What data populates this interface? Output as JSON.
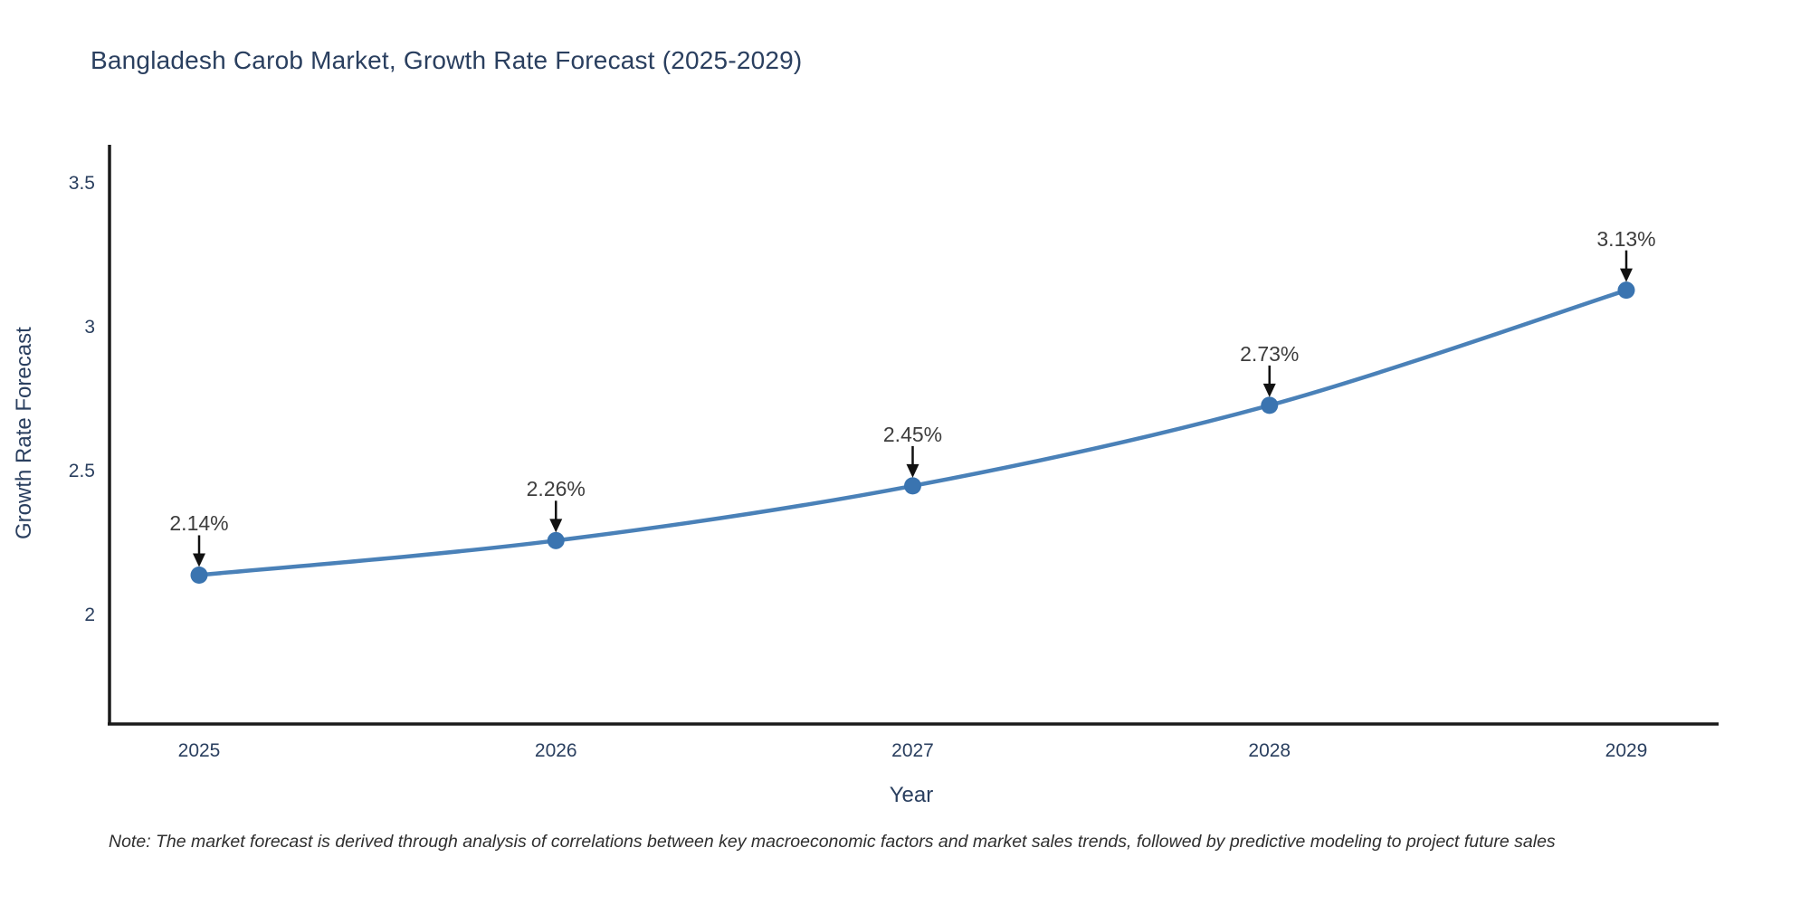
{
  "title": "Bangladesh Carob Market, Growth Rate Forecast (2025-2029)",
  "note": "Note: The market forecast is derived through analysis of correlations between key macroeconomic factors and market sales trends, followed by predictive modeling to project future sales",
  "chart_data": {
    "type": "line",
    "title": "Bangladesh Carob Market, Growth Rate Forecast (2025-2029)",
    "xlabel": "Year",
    "ylabel": "Growth Rate Forecast",
    "x": [
      2025,
      2026,
      2027,
      2028,
      2029
    ],
    "values": [
      2.14,
      2.26,
      2.45,
      2.73,
      3.13
    ],
    "point_labels": [
      "2.14%",
      "2.26%",
      "2.45%",
      "2.73%",
      "3.13%"
    ],
    "yticks": [
      2,
      2.5,
      3,
      3.5
    ],
    "ytick_labels": [
      "2",
      "2.5",
      "3",
      "3.5"
    ],
    "ylim": [
      1.62,
      3.64
    ],
    "xlim": [
      2024.74,
      2029.26
    ],
    "grid": false,
    "legend": null,
    "annotation_style": "value label with downward black arrow to each marker",
    "colors": {
      "line": "#4a81b8",
      "marker": "#3a74b0",
      "axis_line": "#1a1a1a",
      "tick_text": "#2a3f5f",
      "annotation_text": "#3d3d3d",
      "arrow": "#111111",
      "background": "#ffffff"
    }
  }
}
